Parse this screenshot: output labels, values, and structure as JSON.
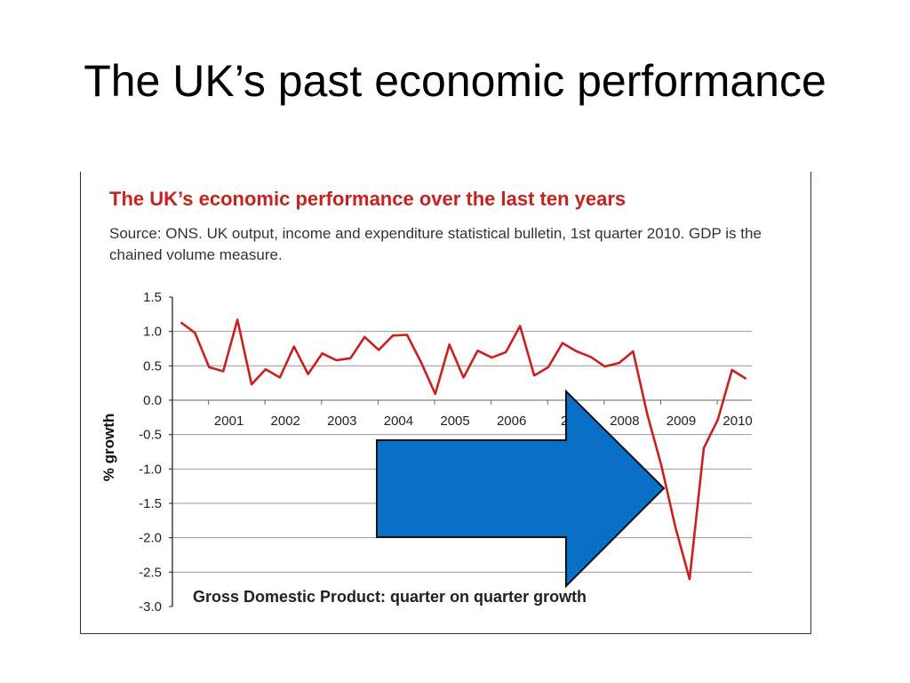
{
  "slide": {
    "title": "The UK’s past economic performance"
  },
  "colors": {
    "line": "#c8211e",
    "arrow_fill": "#0a6fc7",
    "arrow_stroke": "#111111",
    "grid": "#9a9a9a"
  },
  "chart_data": {
    "type": "line",
    "title": "The UK’s economic performance over the last ten years",
    "subtitle": "Source: ONS. UK output, income and expenditure statistical bulletin, 1st quarter 2010. GDP is the chained volume measure.",
    "ylabel": "% growth",
    "caption": "Gross Domestic Product: quarter on quarter growth",
    "ylim": [
      -3.0,
      1.5
    ],
    "yticks": [
      "1.5",
      "1.0",
      "0.5",
      "0.0",
      "-0.5",
      "-1.0",
      "-1.5",
      "-2.0",
      "-2.5",
      "-3.0"
    ],
    "ytick_values": [
      1.5,
      1.0,
      0.5,
      0.0,
      -0.5,
      -1.0,
      -1.5,
      -2.0,
      -2.5,
      -3.0
    ],
    "xticks": [
      "2001",
      "2002",
      "2003",
      "2004",
      "2005",
      "2006",
      "20",
      "2008",
      "2009",
      "2010"
    ],
    "xtick_values": [
      2001,
      2002,
      2003,
      2004,
      2005,
      2006,
      2007,
      2008,
      2009,
      2010
    ],
    "xlim": [
      2000.0,
      2010.25
    ],
    "grid": true,
    "annotation": "blue-right-arrow",
    "series": [
      {
        "name": "",
        "x": [
          2000.15,
          2000.4,
          2000.65,
          2000.9,
          2001.15,
          2001.4,
          2001.65,
          2001.9,
          2002.15,
          2002.4,
          2002.65,
          2002.9,
          2003.15,
          2003.4,
          2003.65,
          2003.9,
          2004.15,
          2004.4,
          2004.65,
          2004.9,
          2005.15,
          2005.4,
          2005.65,
          2005.9,
          2006.15,
          2006.4,
          2006.65,
          2006.9,
          2007.15,
          2007.4,
          2007.65,
          2007.9,
          2008.15,
          2008.4,
          2008.65,
          2008.9,
          2009.15,
          2009.4,
          2009.65,
          2009.9,
          2010.15
        ],
        "values": [
          1.13,
          0.98,
          0.48,
          0.42,
          1.17,
          0.23,
          0.45,
          0.33,
          0.78,
          0.38,
          0.68,
          0.58,
          0.61,
          0.92,
          0.73,
          0.94,
          0.95,
          0.55,
          0.09,
          0.81,
          0.33,
          0.72,
          0.62,
          0.7,
          1.08,
          0.36,
          0.48,
          0.83,
          0.71,
          0.63,
          0.49,
          0.54,
          0.71,
          -0.2,
          -0.95,
          -1.85,
          -2.6,
          -0.7,
          -0.28,
          0.44,
          0.31
        ]
      }
    ]
  }
}
